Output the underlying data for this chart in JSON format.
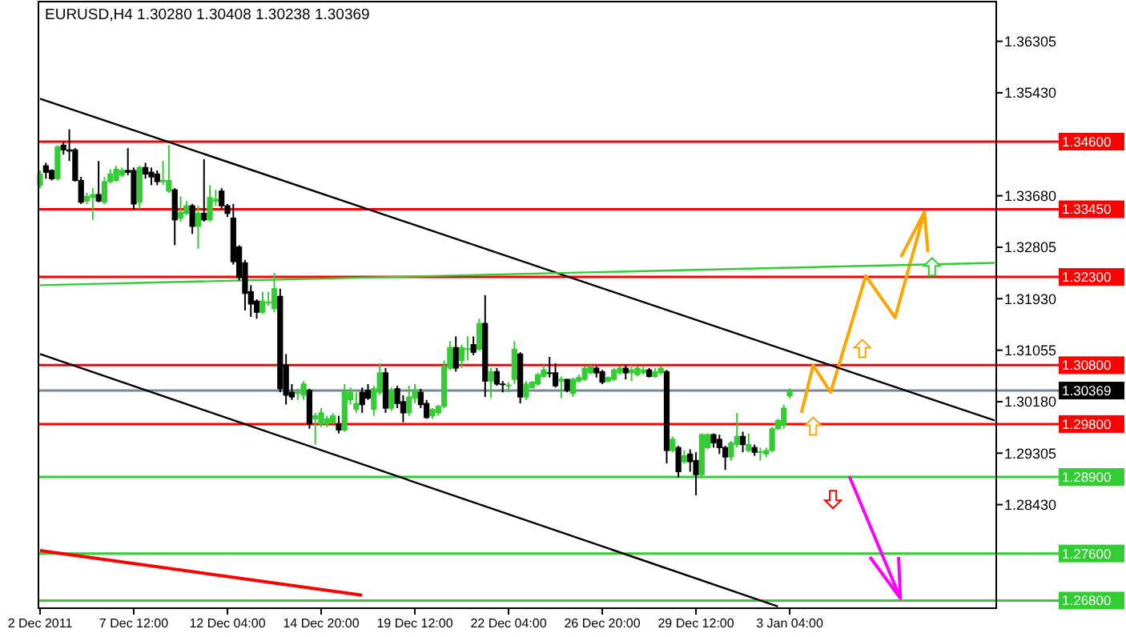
{
  "chart_data": {
    "type": "candlestick",
    "title": "EURUSD,H4  1.30280 1.30408 1.30238 1.30369",
    "categories": [
      "2 Dec 2011",
      null,
      null,
      null,
      null,
      null,
      null,
      null,
      null,
      null,
      null,
      null,
      null,
      null,
      null,
      null,
      "7 Dec 12:00",
      null,
      null,
      null,
      null,
      null,
      null,
      null,
      null,
      null,
      null,
      null,
      null,
      null,
      null,
      null,
      "12 Dec 04:00",
      null,
      null,
      null,
      null,
      null,
      null,
      null,
      null,
      null,
      null,
      null,
      null,
      null,
      null,
      null,
      "14 Dec 20:00",
      null,
      null,
      null,
      null,
      null,
      null,
      null,
      null,
      null,
      null,
      null,
      null,
      null,
      null,
      null,
      "19 Dec 12:00",
      null,
      null,
      null,
      null,
      null,
      null,
      null,
      null,
      null,
      null,
      null,
      null,
      null,
      null,
      null,
      "22 Dec 04:00",
      null,
      null,
      null,
      null,
      null,
      null,
      null,
      null,
      null,
      null,
      null,
      null,
      null,
      null,
      null,
      "26 Dec 20:00",
      null,
      null,
      null,
      null,
      null,
      null,
      null,
      null,
      null,
      null,
      null,
      null,
      null,
      null,
      null,
      "29 Dec 12:00",
      null,
      null,
      null,
      null,
      null,
      null,
      null,
      null,
      null,
      null,
      null,
      null,
      null,
      null,
      null,
      "3 Jan 04:00",
      null,
      null,
      null,
      null,
      null,
      null,
      null,
      null,
      null,
      null,
      null,
      null,
      null,
      null,
      null,
      null,
      null,
      null,
      null,
      null,
      null,
      null,
      null,
      null,
      null,
      null,
      null,
      null,
      null,
      null,
      null,
      null,
      null,
      null,
      null
    ],
    "ohlc": [
      [
        1.3386,
        1.3411,
        1.3381,
        1.3405
      ],
      [
        1.3419,
        1.3424,
        1.3397,
        1.3408
      ],
      [
        1.3411,
        1.3413,
        1.3394,
        1.3397
      ],
      [
        1.3397,
        1.3454,
        1.3394,
        1.3451
      ],
      [
        1.3454,
        1.3459,
        1.3438,
        1.3446
      ],
      [
        1.3446,
        1.3481,
        1.3427,
        1.3444
      ],
      [
        1.3446,
        1.3449,
        1.3392,
        1.3394
      ],
      [
        1.3394,
        1.34,
        1.3354,
        1.3357
      ],
      [
        1.3359,
        1.3373,
        1.3354,
        1.3367
      ],
      [
        1.3365,
        1.3381,
        1.3327,
        1.337
      ],
      [
        1.337,
        1.3427,
        1.3357,
        1.3359
      ],
      [
        1.3357,
        1.34,
        1.3354,
        1.3392
      ],
      [
        1.3392,
        1.3413,
        1.3389,
        1.3405
      ],
      [
        1.3394,
        1.3419,
        1.3392,
        1.3413
      ],
      [
        1.3403,
        1.3416,
        1.34,
        1.3411
      ],
      [
        1.3411,
        1.3449,
        1.3403,
        1.3408
      ],
      [
        1.3411,
        1.3416,
        1.3346,
        1.3354
      ],
      [
        1.3357,
        1.3419,
        1.3346,
        1.3416
      ],
      [
        1.3416,
        1.3424,
        1.3397,
        1.3405
      ],
      [
        1.3408,
        1.3416,
        1.3386,
        1.34
      ],
      [
        1.3405,
        1.3411,
        1.3386,
        1.3392
      ],
      [
        1.3392,
        1.3427,
        1.3386,
        1.3394
      ],
      [
        1.3376,
        1.3454,
        1.3373,
        1.3394
      ],
      [
        1.3378,
        1.3381,
        1.3284,
        1.3327
      ],
      [
        1.333,
        1.3367,
        1.3324,
        1.334
      ],
      [
        1.3338,
        1.3359,
        1.3335,
        1.3351
      ],
      [
        1.3351,
        1.3354,
        1.3303,
        1.3316
      ],
      [
        1.3316,
        1.3351,
        1.3278,
        1.3338
      ],
      [
        1.3338,
        1.343,
        1.3324,
        1.3327
      ],
      [
        1.3327,
        1.3386,
        1.3324,
        1.3365
      ],
      [
        1.3359,
        1.3378,
        1.3351,
        1.3362
      ],
      [
        1.3376,
        1.3381,
        1.3346,
        1.3351
      ],
      [
        1.3351,
        1.3354,
        1.3332,
        1.3338
      ],
      [
        1.333,
        1.3354,
        1.3251,
        1.3256
      ],
      [
        1.3281,
        1.3284,
        1.3224,
        1.3229
      ],
      [
        1.3254,
        1.3259,
        1.3173,
        1.3202
      ],
      [
        1.3205,
        1.3216,
        1.3162,
        1.3184
      ],
      [
        1.3189,
        1.3192,
        1.3159,
        1.317
      ],
      [
        1.317,
        1.3205,
        1.3167,
        1.3189
      ],
      [
        1.3186,
        1.3205,
        1.3181,
        1.3187
      ],
      [
        1.3176,
        1.3237,
        1.317,
        1.321
      ],
      [
        1.3197,
        1.321,
        1.3034,
        1.304
      ],
      [
        1.308,
        1.3099,
        1.3013,
        1.3029
      ],
      [
        1.3034,
        1.3048,
        1.3021,
        1.3026
      ],
      [
        1.3032,
        1.304,
        1.3021,
        1.3034
      ],
      [
        1.3029,
        1.3053,
        1.3021,
        1.3048
      ],
      [
        1.3037,
        1.304,
        1.2972,
        1.298
      ],
      [
        1.2989,
        1.2999,
        1.2945,
        1.2994
      ],
      [
        1.298,
        1.3007,
        1.2975,
        1.2999
      ],
      [
        1.298,
        1.2994,
        1.2975,
        1.2989
      ],
      [
        1.2983,
        1.2999,
        1.298,
        1.2994
      ],
      [
        1.298,
        1.2994,
        1.2964,
        1.297
      ],
      [
        1.297,
        1.3048,
        1.2967,
        1.3037
      ],
      [
        1.3021,
        1.3042,
        1.3013,
        1.3034
      ],
      [
        1.3005,
        1.3034,
        1.2999,
        1.3015
      ],
      [
        1.3034,
        1.3042,
        1.2999,
        1.3013
      ],
      [
        1.3037,
        1.3048,
        1.3021,
        1.3024
      ],
      [
        1.3005,
        1.3045,
        1.2994,
        1.304
      ],
      [
        1.3034,
        1.3083,
        1.3029,
        1.3067
      ],
      [
        1.3067,
        1.3075,
        1.2999,
        1.3007
      ],
      [
        1.3007,
        1.3042,
        1.3002,
        1.3037
      ],
      [
        1.304,
        1.3045,
        1.3007,
        1.3015
      ],
      [
        1.3018,
        1.3029,
        1.2983,
        1.2999
      ],
      [
        1.2999,
        1.3045,
        1.2994,
        1.3026
      ],
      [
        1.3024,
        1.3048,
        1.3015,
        1.3037
      ],
      [
        1.3034,
        1.304,
        1.3007,
        1.3013
      ],
      [
        1.3015,
        1.3021,
        1.2989,
        1.2991
      ],
      [
        1.2994,
        1.3007,
        1.2989,
        1.3005
      ],
      [
        1.2999,
        1.3013,
        1.2994,
        1.301
      ],
      [
        1.301,
        1.3088,
        1.3007,
        1.3078
      ],
      [
        1.3075,
        1.3121,
        1.3072,
        1.311
      ],
      [
        1.311,
        1.3129,
        1.3069,
        1.3075
      ],
      [
        1.3088,
        1.3115,
        1.3075,
        1.311
      ],
      [
        1.3107,
        1.3129,
        1.3088,
        1.3108
      ],
      [
        1.3115,
        1.3129,
        1.3097,
        1.3102
      ],
      [
        1.3107,
        1.3159,
        1.3105,
        1.3151
      ],
      [
        1.3151,
        1.3199,
        1.3026,
        1.3053
      ],
      [
        1.3053,
        1.3075,
        1.3024,
        1.3069
      ],
      [
        1.3069,
        1.3075,
        1.3045,
        1.3048
      ],
      [
        1.3048,
        1.3053,
        1.3034,
        1.3047
      ],
      [
        1.3045,
        1.3051,
        1.3034,
        1.3046
      ],
      [
        1.3056,
        1.3121,
        1.3048,
        1.3107
      ],
      [
        1.3099,
        1.3102,
        1.3015,
        1.3026
      ],
      [
        1.3026,
        1.3053,
        1.3021,
        1.3048
      ],
      [
        1.3042,
        1.3053,
        1.304,
        1.3051
      ],
      [
        1.3048,
        1.3067,
        1.3045,
        1.3064
      ],
      [
        1.3061,
        1.308,
        1.3059,
        1.3072
      ],
      [
        1.3067,
        1.3094,
        1.3059,
        1.3066
      ],
      [
        1.3067,
        1.3083,
        1.3042,
        1.3045
      ],
      [
        1.3053,
        1.3061,
        1.3024,
        1.3056
      ],
      [
        1.3056,
        1.3056,
        1.3034,
        1.3037
      ],
      [
        1.3032,
        1.3059,
        1.3026,
        1.3056
      ],
      [
        1.3053,
        1.3064,
        1.3051,
        1.3059
      ],
      [
        1.3056,
        1.3078,
        1.3053,
        1.3075
      ],
      [
        1.3067,
        1.308,
        1.3064,
        1.3078
      ],
      [
        1.3075,
        1.3078,
        1.3059,
        1.3067
      ],
      [
        1.3069,
        1.3072,
        1.3048,
        1.3051
      ],
      [
        1.3053,
        1.3061,
        1.3051,
        1.3059
      ],
      [
        1.3056,
        1.3075,
        1.3053,
        1.3072
      ],
      [
        1.3067,
        1.3078,
        1.3064,
        1.3075
      ],
      [
        1.3075,
        1.308,
        1.3056,
        1.3067
      ],
      [
        1.3067,
        1.308,
        1.3053,
        1.3072
      ],
      [
        1.3064,
        1.3078,
        1.3061,
        1.3075
      ],
      [
        1.3067,
        1.3078,
        1.3064,
        1.3072
      ],
      [
        1.3072,
        1.3075,
        1.3059,
        1.3061
      ],
      [
        1.3061,
        1.3075,
        1.3059,
        1.3069
      ],
      [
        1.3067,
        1.3078,
        1.3064,
        1.3075
      ],
      [
        1.3069,
        1.3072,
        1.2913,
        1.2935
      ],
      [
        1.2935,
        1.2959,
        1.2932,
        1.2954
      ],
      [
        1.294,
        1.2943,
        1.2889,
        1.2899
      ],
      [
        1.2916,
        1.2935,
        1.2913,
        1.2926
      ],
      [
        1.2929,
        1.2937,
        1.2899,
        1.2916
      ],
      [
        1.2918,
        1.2932,
        1.2859,
        1.2894
      ],
      [
        1.2894,
        1.2964,
        1.2891,
        1.2962
      ],
      [
        1.294,
        1.2964,
        1.2937,
        1.2962
      ],
      [
        1.2962,
        1.2964,
        1.294,
        1.2948
      ],
      [
        1.2954,
        1.2962,
        1.2929,
        1.294
      ],
      [
        1.294,
        1.2943,
        1.2902,
        1.2924
      ],
      [
        1.2924,
        1.2951,
        1.2918,
        1.2948
      ],
      [
        1.2945,
        1.2999,
        1.294,
        1.2959
      ],
      [
        1.2959,
        1.2967,
        1.2932,
        1.2945
      ],
      [
        1.2935,
        1.2964,
        1.2932,
        1.2945
      ],
      [
        1.294,
        1.2945,
        1.2926,
        1.2932
      ],
      [
        1.2932,
        1.294,
        1.2918,
        1.2933
      ],
      [
        1.2929,
        1.294,
        1.2924,
        1.2935
      ],
      [
        1.2935,
        1.2975,
        1.2932,
        1.2972
      ],
      [
        1.2972,
        1.2989,
        1.297,
        1.2986
      ],
      [
        1.2978,
        1.3013,
        1.2972,
        1.3007
      ],
      [
        1.3028,
        1.30408,
        1.30238,
        1.30369
      ],
      null,
      null,
      null,
      null,
      null,
      null,
      null,
      null,
      null,
      null,
      null,
      null,
      null,
      null,
      null,
      null,
      null,
      null,
      null,
      null,
      null,
      null,
      null,
      null,
      null,
      null,
      null,
      null,
      null,
      null,
      null,
      null,
      null,
      null,
      null
    ],
    "series": [
      {
        "type": "line",
        "color": "#ffa500",
        "values": [
          null,
          null,
          null,
          null,
          null,
          null,
          null,
          null,
          null,
          null,
          null,
          null,
          null,
          null,
          null,
          null,
          null,
          null,
          null,
          null,
          null,
          null,
          null,
          null,
          null,
          null,
          null,
          null,
          null,
          null,
          null,
          null,
          null,
          null,
          null,
          null,
          null,
          null,
          null,
          null,
          null,
          null,
          null,
          null,
          null,
          null,
          null,
          null,
          null,
          null,
          null,
          null,
          null,
          null,
          null,
          null,
          null,
          null,
          null,
          null,
          null,
          null,
          null,
          null,
          null,
          null,
          null,
          null,
          null,
          null,
          null,
          null,
          null,
          null,
          null,
          null,
          null,
          null,
          null,
          null,
          null,
          null,
          null,
          null,
          null,
          null,
          null,
          null,
          null,
          null,
          null,
          null,
          null,
          null,
          null,
          null,
          null,
          null,
          null,
          null,
          null,
          null,
          null,
          null,
          null,
          null,
          null,
          null,
          null,
          null,
          null,
          null,
          null,
          null,
          null,
          null,
          null,
          null,
          null,
          null,
          null,
          null,
          null,
          null,
          null,
          null,
          null,
          null,
          null,
          null,
          1.2999,
          null,
          1.308,
          null,
          null,
          1.3034,
          null,
          null,
          null,
          null,
          null,
          1.3232,
          null,
          null,
          null,
          null,
          1.3161,
          null,
          null,
          null,
          null,
          1.334,
          null,
          null,
          null,
          null,
          null,
          null,
          null,
          null,
          null,
          null,
          null,
          null
        ]
      },
      {
        "type": "line",
        "color": "#000000",
        "values": [
          1.3533,
          null,
          null,
          null,
          null,
          null,
          null,
          null,
          null,
          null,
          null,
          null,
          null,
          null,
          null,
          null,
          null,
          null,
          null,
          null,
          null,
          null,
          null,
          null,
          null,
          null,
          null,
          null,
          null,
          null,
          null,
          null,
          null,
          null,
          null,
          null,
          null,
          null,
          null,
          null,
          null,
          null,
          null,
          null,
          null,
          null,
          null,
          null,
          null,
          null,
          null,
          null,
          null,
          null,
          null,
          null,
          null,
          null,
          null,
          null,
          null,
          null,
          null,
          null,
          null,
          null,
          null,
          null,
          null,
          null,
          null,
          null,
          null,
          null,
          null,
          null,
          null,
          null,
          null,
          null,
          null,
          null,
          null,
          null,
          null,
          null,
          null,
          null,
          null,
          null,
          null,
          null,
          null,
          null,
          null,
          null,
          null,
          null,
          null,
          null,
          null,
          null,
          null,
          null,
          null,
          null,
          null,
          null,
          null,
          null,
          null,
          null,
          null,
          null,
          null,
          null,
          null,
          null,
          null,
          null,
          null,
          null,
          null,
          null,
          null,
          null,
          null,
          null,
          null,
          null,
          null,
          null,
          null,
          null,
          null,
          null,
          null,
          null,
          null,
          null,
          null,
          null,
          null,
          null,
          null,
          null,
          null,
          null,
          null,
          null,
          null,
          null,
          null,
          null,
          null,
          null,
          null,
          null,
          null,
          null,
          null,
          null,
          null,
          1.2986
        ]
      },
      {
        "type": "line",
        "color": "#000000",
        "values": [
          1.3099,
          null,
          null,
          null,
          null,
          null,
          null,
          null,
          null,
          null,
          null,
          null,
          null,
          null,
          null,
          null,
          null,
          null,
          null,
          null,
          null,
          null,
          null,
          null,
          null,
          null,
          null,
          null,
          null,
          null,
          null,
          null,
          null,
          null,
          null,
          null,
          null,
          null,
          null,
          null,
          null,
          null,
          null,
          null,
          null,
          null,
          null,
          null,
          null,
          null,
          null,
          null,
          null,
          null,
          null,
          null,
          null,
          null,
          null,
          null,
          null,
          null,
          null,
          null,
          null,
          null,
          null,
          null,
          null,
          null,
          null,
          null,
          null,
          null,
          null,
          null,
          null,
          null,
          null,
          null,
          null,
          null,
          null,
          null,
          null,
          null,
          null,
          null,
          null,
          null,
          null,
          null,
          null,
          null,
          null,
          null,
          null,
          null,
          null,
          null,
          null,
          null,
          null,
          null,
          null,
          null,
          null,
          null,
          null,
          null,
          null,
          null,
          null,
          null,
          null,
          null,
          null,
          null,
          null,
          null,
          null,
          null,
          null,
          null,
          null,
          null,
          1.267,
          null,
          null,
          null,
          null,
          null,
          null,
          null,
          null,
          null,
          null,
          null,
          null,
          null,
          null,
          null,
          null,
          null,
          null,
          null,
          null,
          null,
          null,
          null,
          null,
          null,
          null,
          null,
          null,
          null,
          null,
          null,
          null,
          null,
          null,
          null,
          null,
          null
        ]
      },
      {
        "type": "line",
        "color": "#ff0000",
        "values": [
          1.2765,
          null,
          null,
          null,
          null,
          null,
          null,
          null,
          null,
          null,
          null,
          null,
          null,
          null,
          null,
          null,
          null,
          null,
          null,
          null,
          null,
          null,
          null,
          null,
          null,
          null,
          null,
          null,
          null,
          null,
          null,
          null,
          null,
          null,
          null,
          null,
          null,
          null,
          null,
          null,
          null,
          null,
          null,
          null,
          null,
          null,
          null,
          null,
          null,
          null,
          null,
          null,
          null,
          null,
          null,
          1.2689,
          null,
          null,
          null,
          null,
          null,
          null,
          null,
          null,
          null,
          null,
          null,
          null,
          null,
          null,
          null,
          null,
          null,
          null,
          null,
          null,
          null,
          null,
          null,
          null,
          null,
          null,
          null,
          null,
          null,
          null,
          null,
          null,
          null,
          null,
          null,
          null,
          null,
          null,
          null,
          null,
          null,
          null,
          null,
          null,
          null,
          null,
          null,
          null,
          null,
          null,
          null,
          null,
          null,
          null,
          null,
          null,
          null,
          null,
          null,
          null,
          null,
          null,
          null,
          null,
          null,
          null,
          null,
          null,
          null,
          null,
          null,
          null,
          null,
          null,
          null,
          null,
          null,
          null,
          null,
          null,
          null,
          null,
          null,
          null,
          null,
          null,
          null,
          null,
          null,
          null,
          null,
          null,
          null,
          null,
          null,
          null,
          null,
          null,
          null,
          null,
          null,
          null,
          null,
          null,
          null,
          null,
          null,
          null
        ]
      },
      {
        "type": "line",
        "color": "#32cd32",
        "values": [
          1.3216,
          null,
          null,
          null,
          null,
          null,
          null,
          null,
          null,
          null,
          null,
          null,
          null,
          null,
          null,
          null,
          null,
          null,
          null,
          null,
          null,
          null,
          null,
          null,
          null,
          null,
          null,
          null,
          null,
          null,
          null,
          null,
          null,
          null,
          null,
          null,
          null,
          null,
          null,
          null,
          null,
          null,
          null,
          null,
          null,
          null,
          null,
          null,
          null,
          null,
          null,
          null,
          null,
          null,
          null,
          null,
          null,
          null,
          null,
          null,
          null,
          null,
          null,
          null,
          null,
          null,
          null,
          null,
          null,
          null,
          null,
          null,
          null,
          null,
          null,
          null,
          null,
          null,
          null,
          null,
          null,
          null,
          null,
          null,
          null,
          null,
          null,
          null,
          null,
          null,
          null,
          null,
          null,
          null,
          null,
          null,
          null,
          null,
          null,
          null,
          null,
          null,
          null,
          null,
          null,
          null,
          null,
          null,
          null,
          null,
          null,
          null,
          null,
          null,
          null,
          null,
          null,
          null,
          null,
          null,
          null,
          null,
          null,
          null,
          null,
          null,
          null,
          null,
          null,
          null,
          null,
          null,
          null,
          null,
          null,
          null,
          null,
          null,
          null,
          null,
          null,
          null,
          null,
          null,
          null,
          null,
          null,
          null,
          null,
          null,
          null,
          null,
          null,
          null,
          null,
          null,
          null,
          null,
          null,
          null,
          null,
          null,
          null,
          1.3254
        ]
      }
    ],
    "ylim": [
      1.2667,
      1.3698
    ],
    "yticks": [
      1.36305,
      {
        "value": 1.3543,
        "label": "1.35430"
      },
      {
        "value": 1.3368,
        "label": "1.33680"
      },
      1.32805,
      {
        "value": 1.3193,
        "label": "1.31930"
      },
      1.31055,
      {
        "value": 1.3018,
        "label": "1.30180"
      },
      1.29305,
      {
        "value": 1.2843,
        "label": "1.28430"
      }
    ],
    "ref_lines": [
      {
        "axis": "y",
        "value": 1.346,
        "label": "1.34600",
        "color": "#ff0000"
      },
      {
        "axis": "y",
        "value": 1.3345,
        "label": "1.33450",
        "color": "#ff0000"
      },
      {
        "axis": "y",
        "value": 1.323,
        "label": "1.32300",
        "color": "#ff0000"
      },
      {
        "axis": "y",
        "value": 1.308,
        "label": "1.30800",
        "color": "#ff0000"
      },
      {
        "axis": "y",
        "value": 1.30369,
        "label": "1.30369",
        "color": "#778899"
      },
      {
        "axis": "y",
        "value": 1.298,
        "label": "1.29800",
        "color": "#ff0000"
      },
      {
        "axis": "y",
        "value": 1.289,
        "label": "1.28900",
        "color": "#32cd32"
      },
      {
        "axis": "y",
        "value": 1.276,
        "label": "1.27600",
        "color": "#32cd32"
      },
      {
        "axis": "y",
        "value": 1.268,
        "label": "1.26800",
        "color": "#32cd32"
      }
    ]
  }
}
